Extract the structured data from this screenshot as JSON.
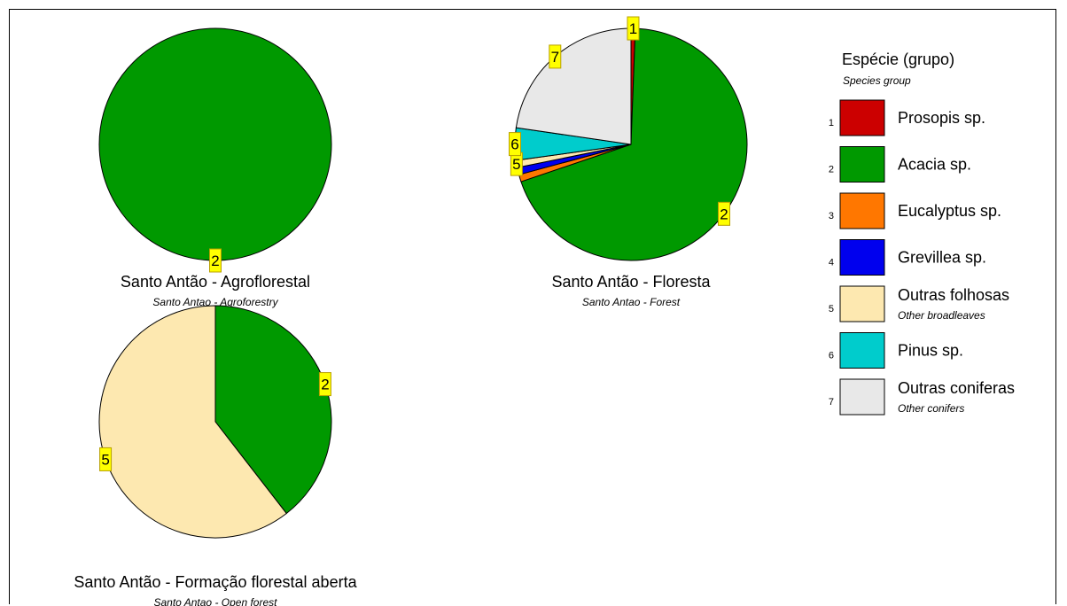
{
  "legend": {
    "title": "Espécie (grupo)",
    "subtitle": "Species group",
    "items": [
      {
        "id": "1",
        "name": "Prosopis sp.",
        "sub": "",
        "color": "#cc0000"
      },
      {
        "id": "2",
        "name": "Acacia sp.",
        "sub": "",
        "color": "#009900"
      },
      {
        "id": "3",
        "name": "Eucalyptus sp.",
        "sub": "",
        "color": "#ff7700"
      },
      {
        "id": "4",
        "name": "Grevillea sp.",
        "sub": "",
        "color": "#0000ee"
      },
      {
        "id": "5",
        "name": "Outras folhosas",
        "sub": "Other broadleaves",
        "color": "#fde8b0"
      },
      {
        "id": "6",
        "name": "Pinus sp.",
        "sub": "",
        "color": "#00cccc"
      },
      {
        "id": "7",
        "name": "Outras coniferas",
        "sub": "Other conifers",
        "color": "#e8e8e8"
      }
    ]
  },
  "chart_data": [
    {
      "type": "pie",
      "title": "Santo Antão - Agroflorestal",
      "subtitle": "Santo Antao - Agroforestry",
      "slices": [
        {
          "id": "2",
          "value": 100,
          "label": "2"
        }
      ]
    },
    {
      "type": "pie",
      "title": "Santo Antão - Floresta",
      "subtitle": "Santo Antao - Forest",
      "slices": [
        {
          "id": "1",
          "value": 0.6,
          "label": "1"
        },
        {
          "id": "2",
          "value": 69.2,
          "label": "2"
        },
        {
          "id": "3",
          "value": 1.0,
          "label": ""
        },
        {
          "id": "4",
          "value": 1.0,
          "label": ""
        },
        {
          "id": "5",
          "value": 1.0,
          "label": "5"
        },
        {
          "id": "6",
          "value": 4.5,
          "label": "6"
        },
        {
          "id": "7",
          "value": 22.7,
          "label": "7"
        }
      ]
    },
    {
      "type": "pie",
      "title": "Santo Antão - Formação florestal aberta",
      "subtitle": "Santo Antao - Open forest",
      "slices": [
        {
          "id": "2",
          "value": 39.5,
          "label": "2"
        },
        {
          "id": "5",
          "value": 60.5,
          "label": "5"
        }
      ]
    }
  ]
}
